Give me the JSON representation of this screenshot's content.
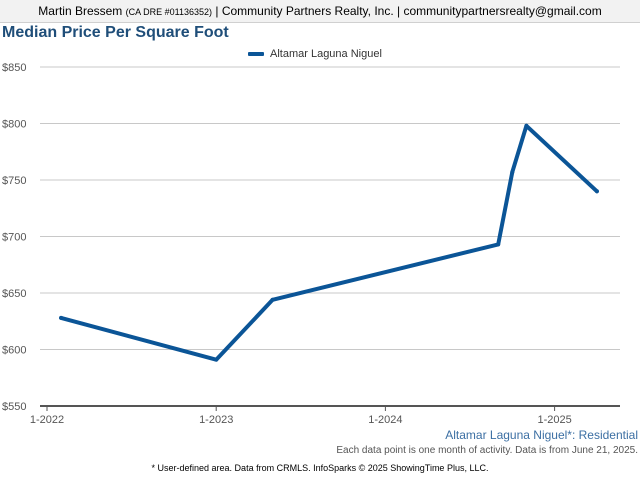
{
  "header": {
    "agent_name": "Martin Bressem",
    "license": "(CA DRE #01136352)",
    "rest": "| Community Partners Realty, Inc. | communitypartnersrealty@gmail.com"
  },
  "subtitle": "Altamar Laguna Niguel*: Residential",
  "note": "Each data point is one month of activity. Data is from June 21, 2025.",
  "footer": "* User-defined area. Data from CRMLS. InfoSparks © 2025 ShowingTime Plus, LLC.",
  "colors": {
    "series": "#0b5597",
    "title": "#1f4e79",
    "grid": "#c8c8c8"
  },
  "chart_data": {
    "type": "line",
    "title": "Median Price Per Square Foot",
    "xlabel": "",
    "ylabel": "",
    "ylim": [
      550,
      850
    ],
    "yticks": [
      550,
      600,
      650,
      700,
      750,
      800,
      850
    ],
    "ytick_labels": [
      "$550",
      "$600",
      "$650",
      "$700",
      "$750",
      "$800",
      "$850"
    ],
    "xticks": [
      "2022-01",
      "2023-01",
      "2024-01",
      "2025-01"
    ],
    "xtick_labels": [
      "1-2022",
      "1-2023",
      "1-2024",
      "1-2025"
    ],
    "xlim": [
      "2022-01",
      "2025-06"
    ],
    "grid": true,
    "legend_position": "top-center",
    "series": [
      {
        "name": "Altamar Laguna Niguel",
        "points": [
          {
            "x": "2022-02",
            "y": 628
          },
          {
            "x": "2023-01",
            "y": 591
          },
          {
            "x": "2023-05",
            "y": 644
          },
          {
            "x": "2024-09",
            "y": 693
          },
          {
            "x": "2024-10",
            "y": 757
          },
          {
            "x": "2024-11",
            "y": 798
          },
          {
            "x": "2025-04",
            "y": 740
          }
        ]
      }
    ]
  }
}
